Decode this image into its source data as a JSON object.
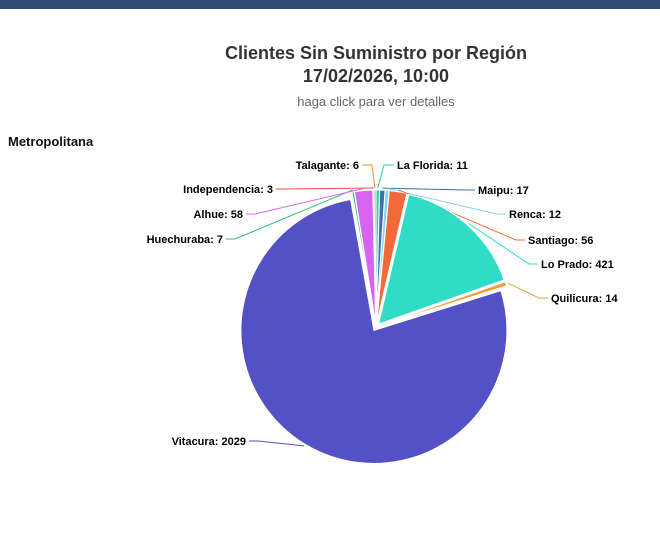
{
  "chart_data": {
    "type": "pie",
    "title_line1": "Clientes Sin Suministro por Región",
    "title_line2": "17/02/2026, 10:00",
    "subtitle": "haga click para ver detalles",
    "region": "Metropolitana",
    "slices": [
      {
        "name": "La Florida",
        "value": 11,
        "color": "#2bd0a6"
      },
      {
        "name": "Maipu",
        "value": 17,
        "color": "#3f6fa8"
      },
      {
        "name": "Renca",
        "value": 12,
        "color": "#7fd6e8"
      },
      {
        "name": "Santiago",
        "value": 56,
        "color": "#f26a3a"
      },
      {
        "name": "Lo Prado",
        "value": 421,
        "color": "#31dcc7"
      },
      {
        "name": "Quilicura",
        "value": 14,
        "color": "#f2a13a"
      },
      {
        "name": "Vitacura",
        "value": 2029,
        "color": "#5451c6"
      },
      {
        "name": "Huechuraba",
        "value": 7,
        "color": "#2fbf7a"
      },
      {
        "name": "Alhue",
        "value": 58,
        "color": "#d763f0"
      },
      {
        "name": "Independencia",
        "value": 3,
        "color": "#f04a4a"
      },
      {
        "name": "Talagante",
        "value": 6,
        "color": "#f08a3a"
      }
    ]
  }
}
